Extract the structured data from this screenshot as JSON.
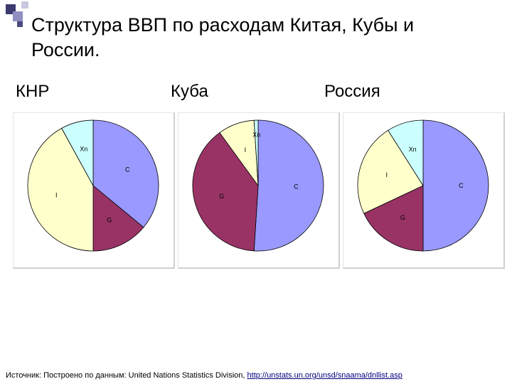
{
  "slide": {
    "title": "Структура ВВП по расходам Китая, Кубы и России.",
    "source_prefix": "Источник: Построено по  данным: United Nations Statistics Division,",
    "source_link": "http://unstats.un.org/unsd/snaama/dnllist.asp"
  },
  "colors": {
    "C": "#9999ff",
    "G": "#993366",
    "I": "#ffffcc",
    "Xn": "#ccffff",
    "outline": "#000000"
  },
  "chart_data": [
    {
      "type": "pie",
      "title": "КНР",
      "slices": [
        {
          "label": "C",
          "value": 36
        },
        {
          "label": "G",
          "value": 14
        },
        {
          "label": "I",
          "value": 42
        },
        {
          "label": "Xn",
          "value": 8
        }
      ]
    },
    {
      "type": "pie",
      "title": "Куба",
      "slices": [
        {
          "label": "C",
          "value": 51
        },
        {
          "label": "G",
          "value": 39
        },
        {
          "label": "I",
          "value": 9
        },
        {
          "label": "Xn",
          "value": 1
        }
      ]
    },
    {
      "type": "pie",
      "title": "Россия",
      "slices": [
        {
          "label": "C",
          "value": 50
        },
        {
          "label": "G",
          "value": 18
        },
        {
          "label": "I",
          "value": 23
        },
        {
          "label": "Xn",
          "value": 9
        }
      ]
    }
  ]
}
